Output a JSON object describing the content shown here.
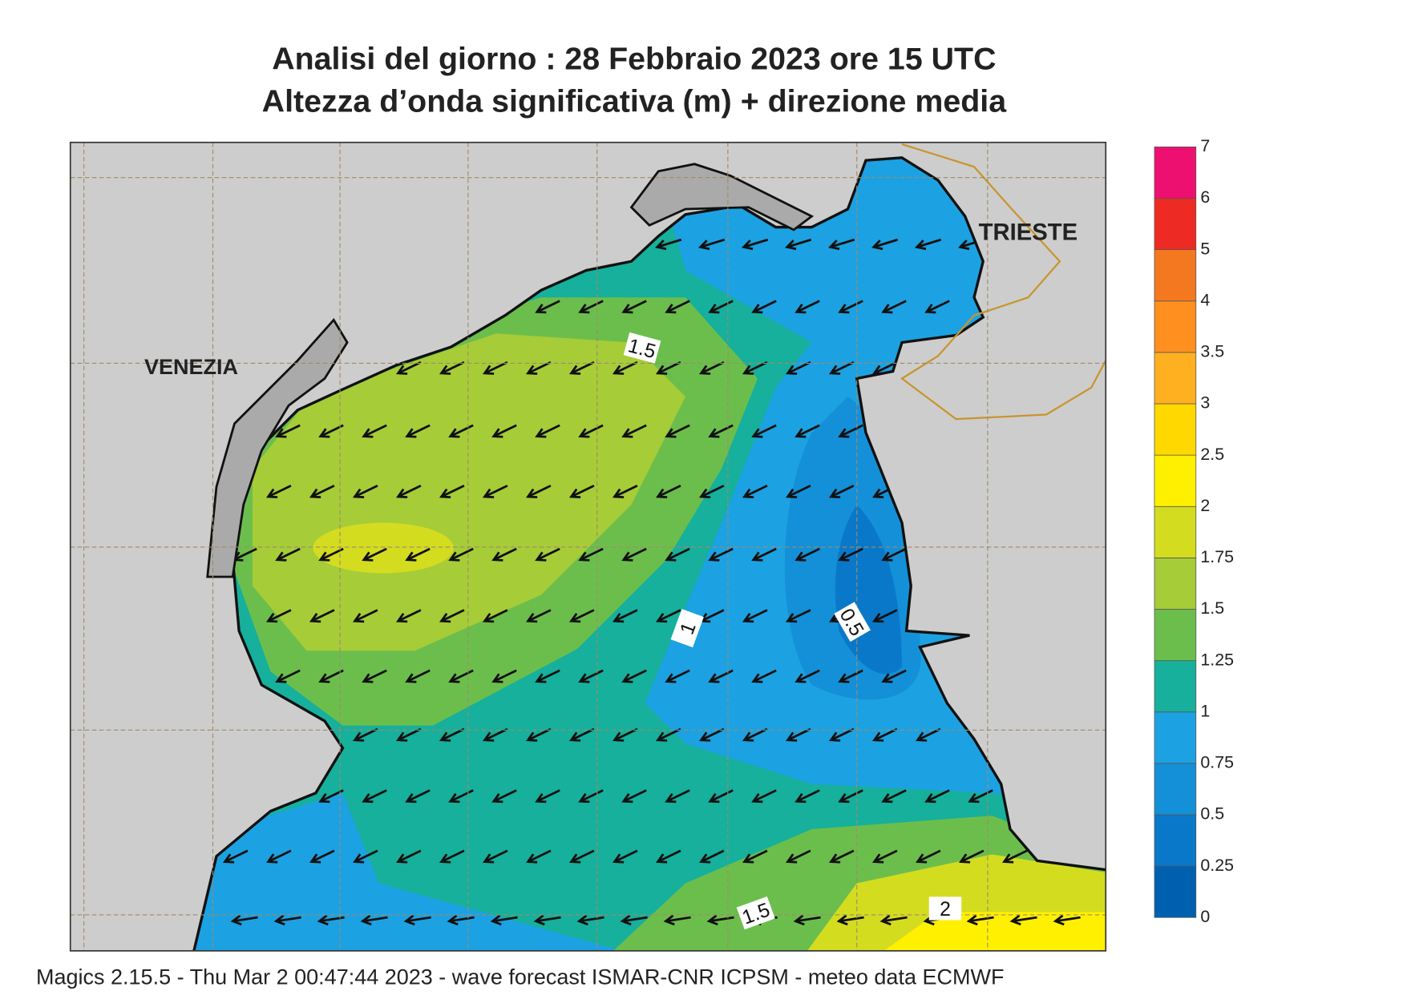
{
  "title": [
    "Analisi del giorno :  28  Febbraio 2023   ore 15 UTC",
    "Altezza d’onda significativa (m) + direzione media"
  ],
  "places": [
    "VENEZIA",
    "TRIESTE"
  ],
  "contour_labels": [
    1.5,
    1,
    0.5,
    1.5,
    2
  ],
  "colorbar": {
    "ticks": [
      0,
      0.25,
      0.5,
      0.75,
      1,
      1.25,
      1.5,
      1.75,
      2,
      2.5,
      3,
      3.5,
      4,
      5,
      6,
      7
    ],
    "colors": [
      "#0060b0",
      "#0a78c8",
      "#1490d8",
      "#1ca2e2",
      "#16b09c",
      "#6cbe4c",
      "#a6cc38",
      "#d4dc20",
      "#fff000",
      "#ffd800",
      "#ffb020",
      "#ff9020",
      "#f47820",
      "#ee2a24",
      "#ee1070"
    ]
  },
  "footer": "Magics 2.15.5 - Thu Mar  2 00:47:44 2023 - wave forecast  ISMAR-CNR  ICPSM - meteo data    ECMWF"
}
